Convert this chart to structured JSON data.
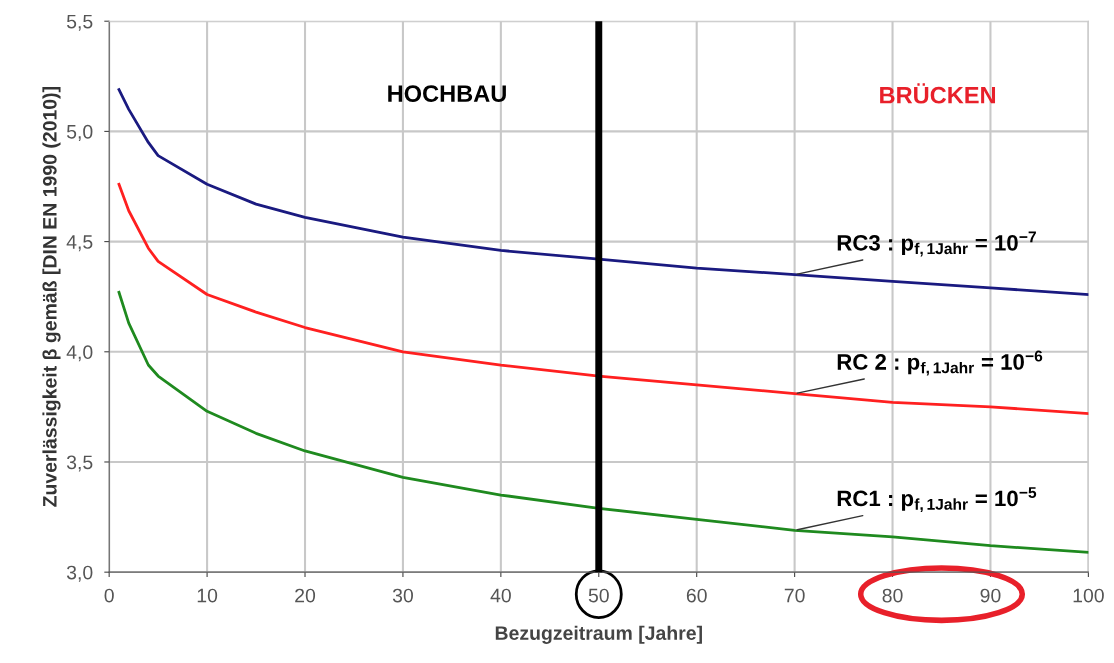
{
  "chart_data": {
    "type": "line",
    "xlabel": "Bezugzeitraum [Jahre]",
    "ylabel": "Zuverlässigkeit β gemäß [DIN EN 1990 (2010)]",
    "x": [
      1,
      2,
      4,
      5,
      10,
      15,
      20,
      30,
      40,
      50,
      60,
      70,
      80,
      90,
      100
    ],
    "series": [
      {
        "name": "RC3 : p$_{f,1Jahr}$ = 10$^{−7}$",
        "color": "#1a1a80",
        "values": [
          5.19,
          5.1,
          4.95,
          4.89,
          4.76,
          4.67,
          4.61,
          4.52,
          4.46,
          4.42,
          4.38,
          4.35,
          4.32,
          4.29,
          4.26
        ]
      },
      {
        "name": "RC 2 : p$_{f,1Jahr}$ = 10$^{−6}$",
        "color": "#ff2020",
        "values": [
          4.76,
          4.64,
          4.47,
          4.41,
          4.26,
          4.18,
          4.11,
          4.0,
          3.94,
          3.89,
          3.85,
          3.81,
          3.77,
          3.75,
          3.72
        ]
      },
      {
        "name": "RC1 : p$_{f,1Jahr}$ = 10$^{−5}$",
        "color": "#1f8a1f",
        "values": [
          4.27,
          4.13,
          3.94,
          3.89,
          3.73,
          3.63,
          3.55,
          3.43,
          3.35,
          3.29,
          3.24,
          3.19,
          3.16,
          3.12,
          3.09
        ]
      }
    ],
    "xlim": [
      0,
      100
    ],
    "xticks": [
      0,
      10,
      20,
      30,
      40,
      50,
      60,
      70,
      80,
      90,
      100
    ],
    "ylim": [
      3.0,
      5.5
    ],
    "yticks": [
      {
        "value": 3.0,
        "label": "3,0"
      },
      {
        "value": 3.5,
        "label": "3,5"
      },
      {
        "value": 4.0,
        "label": "4,0"
      },
      {
        "value": 4.5,
        "label": "4,5"
      },
      {
        "value": 5.0,
        "label": "5,0"
      },
      {
        "value": 5.5,
        "label": "5,5"
      }
    ],
    "grid": true,
    "ref_lines": [
      {
        "axis": "x",
        "value": 50,
        "color": "#000000"
      }
    ],
    "annotations": [
      "HOCHBAU",
      "BRÜCKEN"
    ]
  }
}
